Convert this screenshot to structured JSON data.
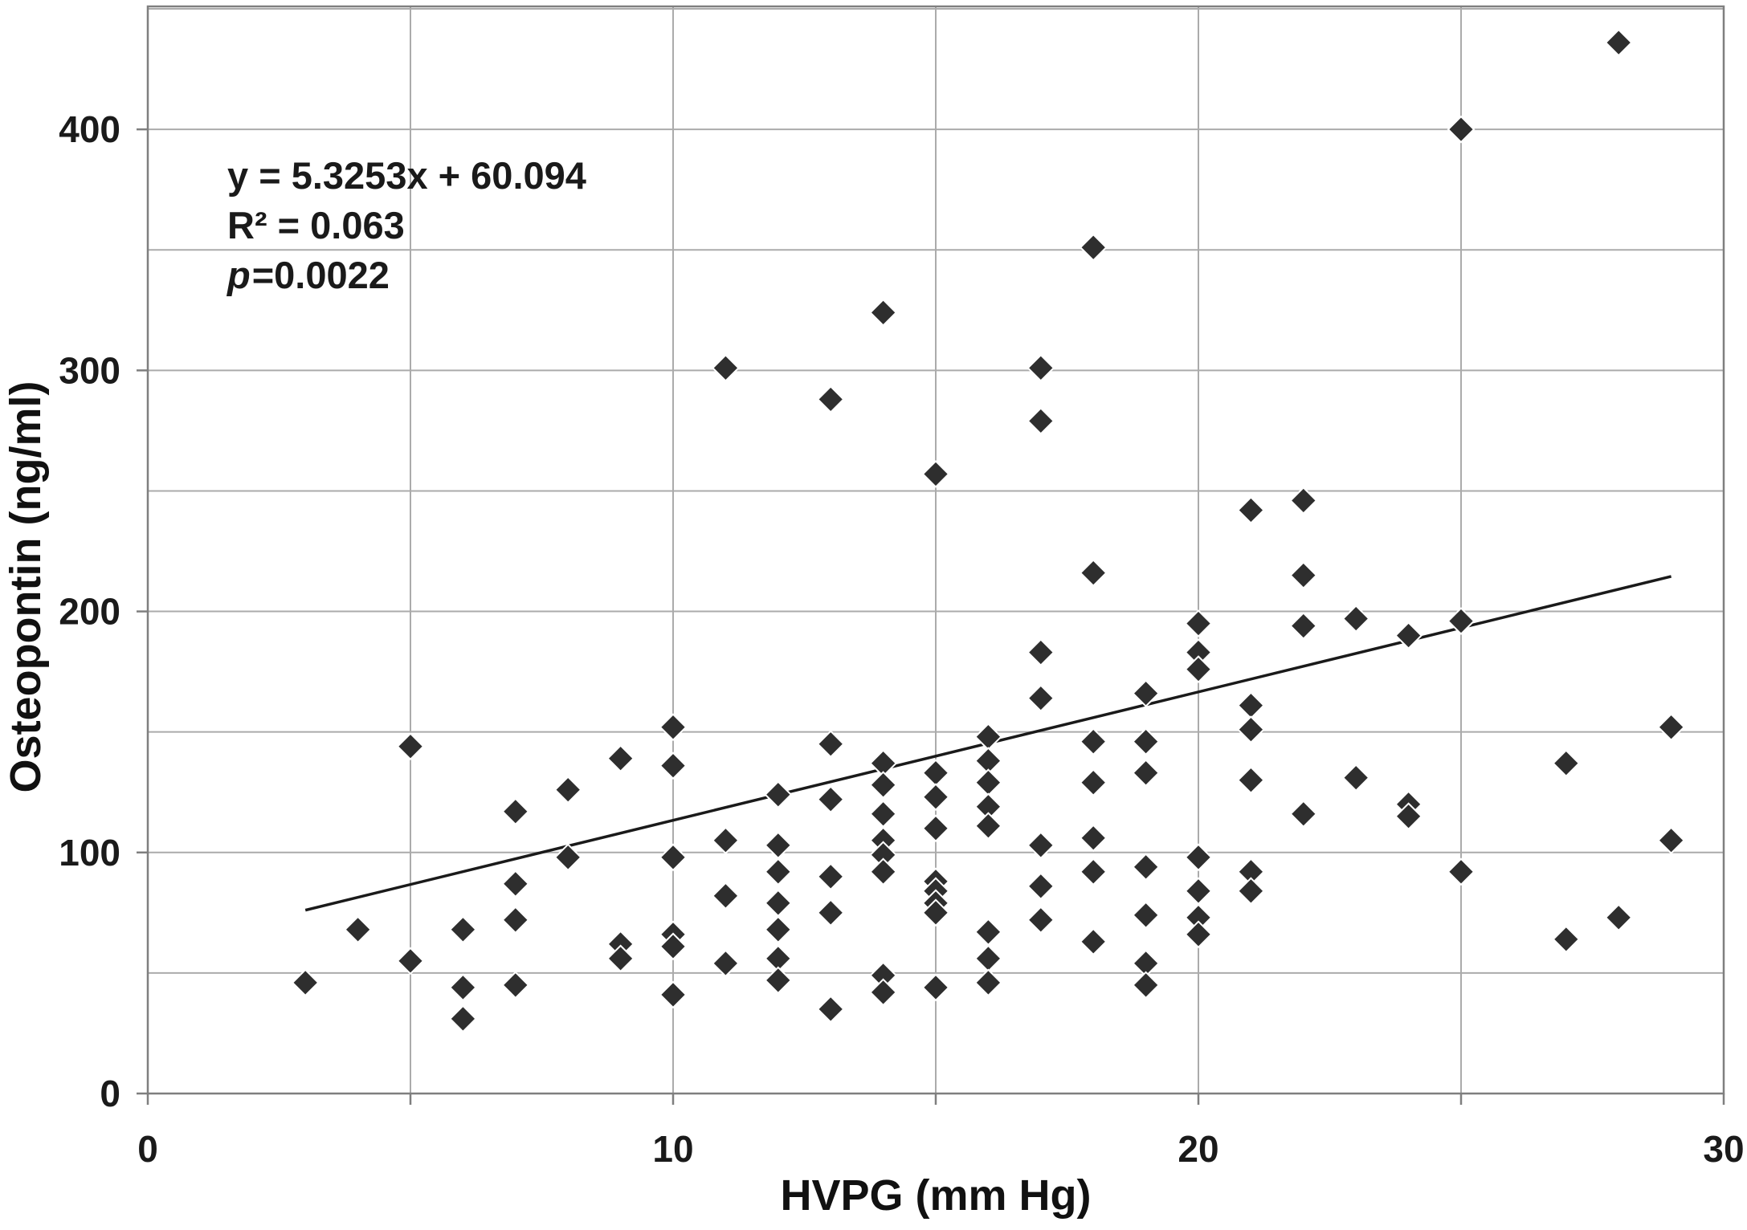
{
  "chart_data": {
    "type": "scatter",
    "title": "",
    "xlabel": "HVPG (mm Hg)",
    "ylabel": "Osteopontin (ng/ml)",
    "xlim": [
      0,
      30
    ],
    "ylim": [
      0,
      451
    ],
    "x_major_tick_labels": [
      0,
      10,
      20,
      30
    ],
    "x_gridline_step": 5,
    "y_major_tick_labels": [
      0,
      100,
      200,
      300,
      400
    ],
    "y_gridline_step": 50,
    "grid": "on",
    "legend": "none",
    "annotation": {
      "equation": "y = 5.3253x + 60.094",
      "r_squared": "R² = 0.063",
      "p_italic": "p",
      "p_rest": "=0.0022"
    },
    "trendline": {
      "x1": 3,
      "y1": 76.07,
      "x2": 29,
      "y2": 214.53
    },
    "marker": {
      "shape": "diamond",
      "color": "#2e2e2e",
      "half_size": 16
    },
    "points": [
      [
        3,
        46
      ],
      [
        4,
        68
      ],
      [
        5,
        144
      ],
      [
        5,
        55
      ],
      [
        6,
        68
      ],
      [
        6,
        44
      ],
      [
        6,
        31
      ],
      [
        7,
        117
      ],
      [
        7,
        87
      ],
      [
        7,
        72
      ],
      [
        7,
        45
      ],
      [
        8,
        126
      ],
      [
        8,
        98
      ],
      [
        9,
        139
      ],
      [
        9,
        62
      ],
      [
        9,
        56
      ],
      [
        10,
        152
      ],
      [
        10,
        136
      ],
      [
        10,
        98
      ],
      [
        10,
        66
      ],
      [
        10,
        61
      ],
      [
        10,
        41
      ],
      [
        11,
        301
      ],
      [
        11,
        105
      ],
      [
        11,
        82
      ],
      [
        11,
        54
      ],
      [
        12,
        124
      ],
      [
        12,
        103
      ],
      [
        12,
        92
      ],
      [
        12,
        79
      ],
      [
        12,
        68
      ],
      [
        12,
        56
      ],
      [
        12,
        47
      ],
      [
        13,
        288
      ],
      [
        13,
        145
      ],
      [
        13,
        122
      ],
      [
        13,
        90
      ],
      [
        13,
        75
      ],
      [
        13,
        35
      ],
      [
        14,
        324
      ],
      [
        14,
        137
      ],
      [
        14,
        128
      ],
      [
        14,
        116
      ],
      [
        14,
        105
      ],
      [
        14,
        99
      ],
      [
        14,
        92
      ],
      [
        14,
        49
      ],
      [
        14,
        42
      ],
      [
        15,
        257
      ],
      [
        15,
        133
      ],
      [
        15,
        123
      ],
      [
        15,
        110
      ],
      [
        15,
        88
      ],
      [
        15,
        84
      ],
      [
        15,
        79
      ],
      [
        15,
        75
      ],
      [
        15,
        44
      ],
      [
        16,
        148
      ],
      [
        16,
        138
      ],
      [
        16,
        129
      ],
      [
        16,
        119
      ],
      [
        16,
        111
      ],
      [
        16,
        67
      ],
      [
        16,
        56
      ],
      [
        16,
        46
      ],
      [
        17,
        301
      ],
      [
        17,
        279
      ],
      [
        17,
        183
      ],
      [
        17,
        164
      ],
      [
        17,
        103
      ],
      [
        17,
        86
      ],
      [
        17,
        72
      ],
      [
        18,
        351
      ],
      [
        18,
        216
      ],
      [
        18,
        146
      ],
      [
        18,
        129
      ],
      [
        18,
        106
      ],
      [
        18,
        92
      ],
      [
        18,
        63
      ],
      [
        19,
        166
      ],
      [
        19,
        146
      ],
      [
        19,
        133
      ],
      [
        19,
        94
      ],
      [
        19,
        74
      ],
      [
        19,
        54
      ],
      [
        19,
        45
      ],
      [
        20,
        195
      ],
      [
        20,
        183
      ],
      [
        20,
        176
      ],
      [
        20,
        98
      ],
      [
        20,
        84
      ],
      [
        20,
        73
      ],
      [
        20,
        66
      ],
      [
        21,
        242
      ],
      [
        21,
        161
      ],
      [
        21,
        151
      ],
      [
        21,
        130
      ],
      [
        21,
        92
      ],
      [
        21,
        84
      ],
      [
        22,
        246
      ],
      [
        22,
        215
      ],
      [
        22,
        194
      ],
      [
        22,
        116
      ],
      [
        23,
        197
      ],
      [
        23,
        131
      ],
      [
        24,
        190
      ],
      [
        24,
        120
      ],
      [
        24,
        115
      ],
      [
        25,
        400
      ],
      [
        25,
        196
      ],
      [
        25,
        92
      ],
      [
        27,
        137
      ],
      [
        27,
        64
      ],
      [
        28,
        436
      ],
      [
        28,
        73
      ],
      [
        29,
        152
      ],
      [
        29,
        105
      ]
    ]
  },
  "layout_colors": {
    "gridline": "#ababab",
    "axis_line": "#7f7f7f",
    "tick_text": "#1a1a1a",
    "trendline": "#1a1a1a",
    "marker_fill": "#2e2e2e",
    "marker_seam": "#ffffff",
    "background": "#ffffff"
  }
}
